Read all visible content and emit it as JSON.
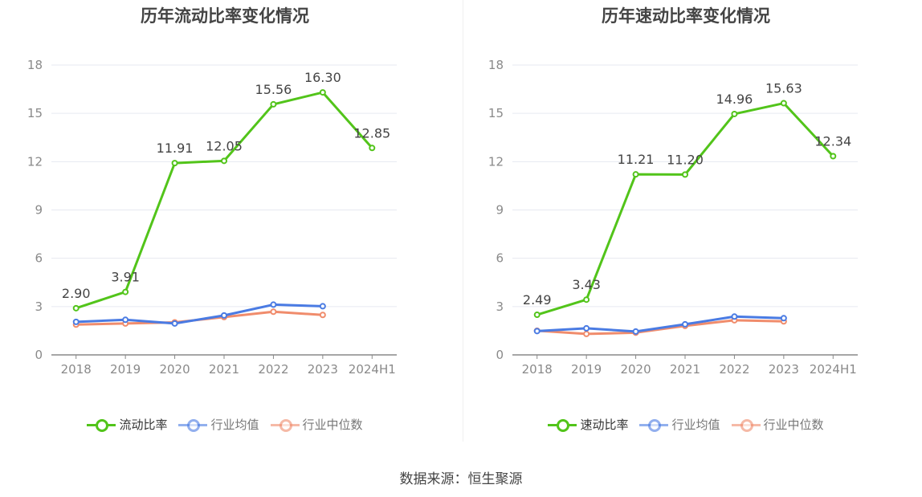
{
  "footer": {
    "source": "数据来源：恒生聚源"
  },
  "colors": {
    "main": "#52c41a",
    "avg": "#4a7be3",
    "median": "#f08c6c",
    "grid": "#e6e9f0",
    "axis": "#888888"
  },
  "chart_data": [
    {
      "type": "line",
      "title": "历年流动比率变化情况",
      "categories": [
        "2018",
        "2019",
        "2020",
        "2021",
        "2022",
        "2023",
        "2024H1"
      ],
      "ylim": [
        0,
        18
      ],
      "yticks": [
        0,
        3,
        6,
        9,
        12,
        15,
        18
      ],
      "legend_position": "bottom",
      "series": [
        {
          "name": "流动比率",
          "color": "#52c41a",
          "labels": true,
          "values": [
            2.9,
            3.91,
            11.91,
            12.05,
            15.56,
            16.3,
            12.85
          ]
        },
        {
          "name": "行业均值",
          "color": "#4a7be3",
          "labels": false,
          "values": [
            2.05,
            2.18,
            1.95,
            2.45,
            3.12,
            3.02,
            null
          ]
        },
        {
          "name": "行业中位数",
          "color": "#f08c6c",
          "labels": false,
          "values": [
            1.88,
            1.95,
            2.02,
            2.35,
            2.68,
            2.48,
            null
          ]
        }
      ]
    },
    {
      "type": "line",
      "title": "历年速动比率变化情况",
      "categories": [
        "2018",
        "2019",
        "2020",
        "2021",
        "2022",
        "2023",
        "2024H1"
      ],
      "ylim": [
        0,
        18
      ],
      "yticks": [
        0,
        3,
        6,
        9,
        12,
        15,
        18
      ],
      "legend_position": "bottom",
      "series": [
        {
          "name": "速动比率",
          "color": "#52c41a",
          "labels": true,
          "values": [
            2.49,
            3.43,
            11.21,
            11.2,
            14.96,
            15.63,
            12.34
          ]
        },
        {
          "name": "行业均值",
          "color": "#4a7be3",
          "labels": false,
          "values": [
            1.48,
            1.65,
            1.45,
            1.9,
            2.38,
            2.28,
            null
          ]
        },
        {
          "name": "行业中位数",
          "color": "#f08c6c",
          "labels": false,
          "values": [
            1.5,
            1.3,
            1.38,
            1.8,
            2.15,
            2.08,
            null
          ]
        }
      ]
    }
  ]
}
